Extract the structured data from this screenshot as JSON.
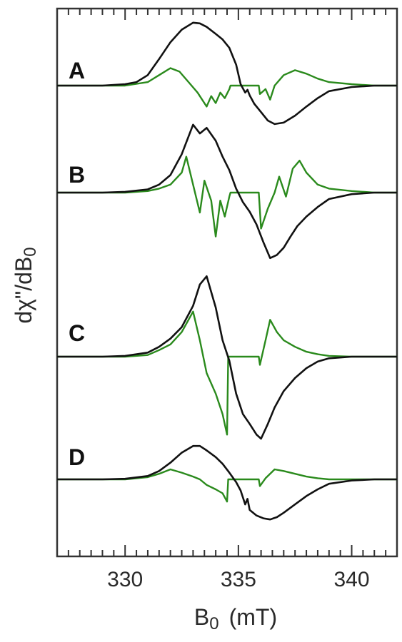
{
  "chart_data": {
    "type": "line",
    "xlabel": {
      "main": "B",
      "sub": "0",
      "unit": "(mT)"
    },
    "ylabel": {
      "pre": "d",
      "chi": "χ",
      "post": "\"/dB",
      "sub": "0"
    },
    "xlim": [
      327,
      342
    ],
    "xticks": [
      330,
      335,
      340
    ],
    "xtick_labels": [
      "330",
      "335",
      "340"
    ],
    "minor_tick_step": 0.5,
    "grid": false,
    "legend": "none",
    "colors": {
      "black": "#111111",
      "green": "#2a8a1c",
      "axis": "#333333"
    },
    "panels": [
      {
        "label": "A",
        "black": {
          "x": [
            327,
            329,
            330,
            330.5,
            331,
            331.5,
            332,
            332.5,
            333,
            333.3,
            333.6,
            334,
            334.3,
            334.6,
            334.9,
            335.1,
            335.3,
            335.4,
            335.5,
            335.7,
            336,
            336.3,
            336.6,
            337,
            337.5,
            338,
            338.5,
            339,
            340,
            341,
            342
          ],
          "y": [
            0,
            0,
            0.02,
            0.05,
            0.15,
            0.38,
            0.62,
            0.8,
            0.9,
            0.89,
            0.84,
            0.74,
            0.66,
            0.54,
            0.3,
            0.02,
            -0.1,
            -0.06,
            -0.14,
            -0.26,
            -0.38,
            -0.5,
            -0.55,
            -0.53,
            -0.43,
            -0.3,
            -0.18,
            -0.08,
            -0.02,
            0,
            0
          ]
        },
        "green": {
          "x": [
            327,
            330,
            331,
            331.5,
            332,
            332.4,
            332.8,
            333.2,
            333.6,
            333.8,
            334.0,
            334.2,
            334.4,
            334.6,
            334.65,
            335.2,
            335.3,
            335.9,
            335.95,
            336.2,
            336.4,
            336.6,
            337,
            337.5,
            338,
            338.5,
            339,
            340,
            341,
            342
          ],
          "y": [
            0,
            0,
            0.05,
            0.15,
            0.25,
            0.2,
            0.05,
            -0.1,
            -0.3,
            -0.15,
            -0.25,
            -0.1,
            -0.18,
            -0.05,
            0,
            0,
            0,
            0,
            -0.12,
            -0.05,
            -0.2,
            0,
            0.15,
            0.22,
            0.17,
            0.1,
            0.05,
            0.02,
            0,
            0
          ]
        }
      },
      {
        "label": "B",
        "black": {
          "x": [
            327,
            329,
            330,
            331,
            331.5,
            332,
            332.5,
            333,
            333.3,
            333.6,
            334,
            334.3,
            334.6,
            334.9,
            335.2,
            335.5,
            335.8,
            336.1,
            336.4,
            336.7,
            337,
            337.3,
            337.6,
            338,
            338.5,
            339,
            340,
            341,
            342
          ],
          "y": [
            0,
            0,
            0.01,
            0.04,
            0.1,
            0.22,
            0.48,
            0.85,
            0.74,
            0.81,
            0.65,
            0.45,
            0.28,
            0.05,
            -0.12,
            -0.24,
            -0.4,
            -0.62,
            -0.82,
            -0.78,
            -0.69,
            -0.55,
            -0.42,
            -0.3,
            -0.18,
            -0.08,
            -0.02,
            0,
            0
          ]
        },
        "green": {
          "x": [
            327,
            330,
            331,
            331.5,
            332,
            332.5,
            332.7,
            333.0,
            333.3,
            333.5,
            333.8,
            334.0,
            334.2,
            334.4,
            334.6,
            334.65,
            335.2,
            335.3,
            335.9,
            336.0,
            336.3,
            336.6,
            336.8,
            337.1,
            337.4,
            337.7,
            338.0,
            338.5,
            339,
            340,
            341,
            342
          ],
          "y": [
            0,
            0,
            0.02,
            0.05,
            0.1,
            0.25,
            0.45,
            0.1,
            -0.25,
            0.15,
            -0.1,
            -0.55,
            -0.1,
            -0.3,
            -0.05,
            0,
            0,
            0,
            0,
            -0.45,
            -0.2,
            0,
            0.2,
            -0.05,
            0.3,
            0.4,
            0.25,
            0.1,
            0.05,
            0.02,
            0,
            0
          ]
        }
      },
      {
        "label": "C",
        "black": {
          "x": [
            327,
            329,
            330,
            331,
            331.5,
            332,
            332.5,
            333,
            333.3,
            333.6,
            334,
            334.3,
            334.6,
            334.9,
            335.2,
            335.5,
            335.8,
            336,
            336.3,
            336.6,
            337,
            337.5,
            338,
            338.5,
            339,
            340,
            341,
            342
          ],
          "y": [
            0,
            0,
            0.01,
            0.05,
            0.12,
            0.22,
            0.36,
            0.62,
            0.88,
            0.98,
            0.6,
            0.2,
            -0.05,
            -0.45,
            -0.7,
            -0.82,
            -0.95,
            -1.0,
            -0.82,
            -0.62,
            -0.42,
            -0.26,
            -0.14,
            -0.06,
            -0.02,
            0,
            0,
            0
          ]
        },
        "green": {
          "x": [
            327,
            330,
            331,
            331.5,
            332,
            332.5,
            333,
            333.3,
            333.6,
            334,
            334.3,
            334.5,
            334.55,
            334.6,
            334.65,
            335.3,
            335.9,
            335.95,
            336.2,
            336.4,
            336.7,
            337,
            337.5,
            338,
            338.5,
            339,
            340,
            341,
            342
          ],
          "y": [
            0,
            0,
            0.02,
            0.08,
            0.15,
            0.3,
            0.55,
            0.2,
            -0.2,
            -0.45,
            -0.7,
            -0.95,
            0,
            0,
            0,
            0,
            0,
            -0.1,
            0.2,
            0.45,
            0.3,
            0.2,
            0.12,
            0.06,
            0.03,
            0.01,
            0,
            0,
            0
          ]
        }
      },
      {
        "label": "D",
        "black": {
          "x": [
            327,
            329,
            330,
            331,
            331.5,
            332,
            332.5,
            333,
            333.3,
            333.6,
            334,
            334.3,
            334.6,
            334.9,
            335.1,
            335.3,
            335.4,
            335.5,
            335.8,
            336.1,
            336.4,
            336.7,
            337,
            337.5,
            338,
            338.5,
            339,
            340,
            341,
            342
          ],
          "y": [
            0,
            0,
            0.01,
            0.06,
            0.15,
            0.3,
            0.48,
            0.6,
            0.6,
            0.52,
            0.4,
            0.28,
            0.12,
            -0.05,
            -0.2,
            -0.45,
            -0.35,
            -0.55,
            -0.65,
            -0.7,
            -0.72,
            -0.68,
            -0.6,
            -0.45,
            -0.3,
            -0.18,
            -0.08,
            -0.02,
            0,
            0
          ]
        },
        "green": {
          "x": [
            327,
            330,
            331,
            331.5,
            332,
            332.5,
            333,
            333.3,
            333.6,
            334,
            334.3,
            334.5,
            334.55,
            334.6,
            334.65,
            335.3,
            335.9,
            335.95,
            336.2,
            336.6,
            337,
            337.5,
            338,
            338.5,
            339,
            340,
            341,
            342
          ],
          "y": [
            0,
            0,
            0.04,
            0.1,
            0.18,
            0.12,
            0.05,
            0,
            -0.1,
            -0.18,
            -0.25,
            -0.4,
            0,
            0,
            0,
            0,
            0,
            -0.12,
            0.02,
            0.18,
            0.15,
            0.1,
            0.05,
            0.02,
            0,
            0,
            0,
            0
          ]
        }
      }
    ]
  }
}
